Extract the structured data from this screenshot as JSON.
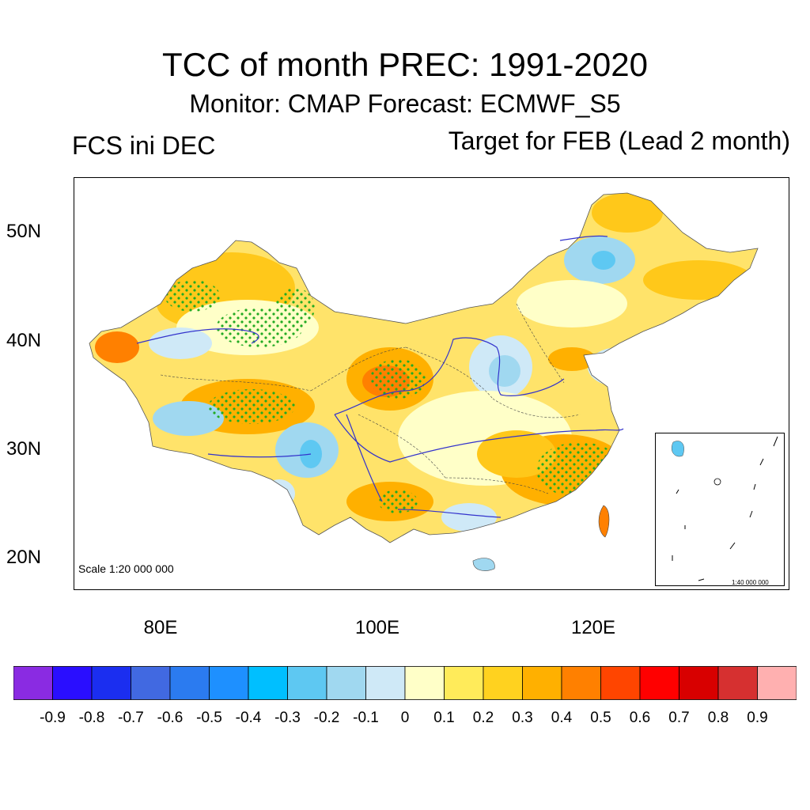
{
  "title": "TCC of month PREC: 1991-2020",
  "subtitle": "Monitor: CMAP   Forecast: ECMWF_S5",
  "left_label": "FCS ini DEC",
  "right_label": "Target for FEB (Lead 2 month)",
  "latitude_labels": [
    "50N",
    "40N",
    "30N",
    "20N"
  ],
  "longitude_labels": [
    "80E",
    "100E",
    "120E"
  ],
  "scale_label": "Scale 1:20 000 000",
  "inset_scale_label": "1:40 000 000",
  "colorbar": {
    "colors": [
      "#8a2be2",
      "#2a0eff",
      "#1b2ef0",
      "#4169e1",
      "#2b7bf0",
      "#1e90ff",
      "#00bfff",
      "#5ec8f2",
      "#a0d8f0",
      "#cfe9f7",
      "#ffffc8",
      "#ffeb5a",
      "#ffd21f",
      "#ffb000",
      "#ff8000",
      "#ff4500",
      "#ff0000",
      "#d80000",
      "#d63030",
      "#ffb0b0"
    ],
    "labels": [
      "-0.9",
      "-0.8",
      "-0.7",
      "-0.6",
      "-0.5",
      "-0.4",
      "-0.3",
      "-0.2",
      "-0.1",
      "0",
      "0.1",
      "0.2",
      "0.3",
      "0.4",
      "0.5",
      "0.6",
      "0.7",
      "0.8",
      "0.9"
    ]
  },
  "map_colors": {
    "border": "#000000",
    "river": "#3333cc",
    "stipple": "#22aa22"
  }
}
